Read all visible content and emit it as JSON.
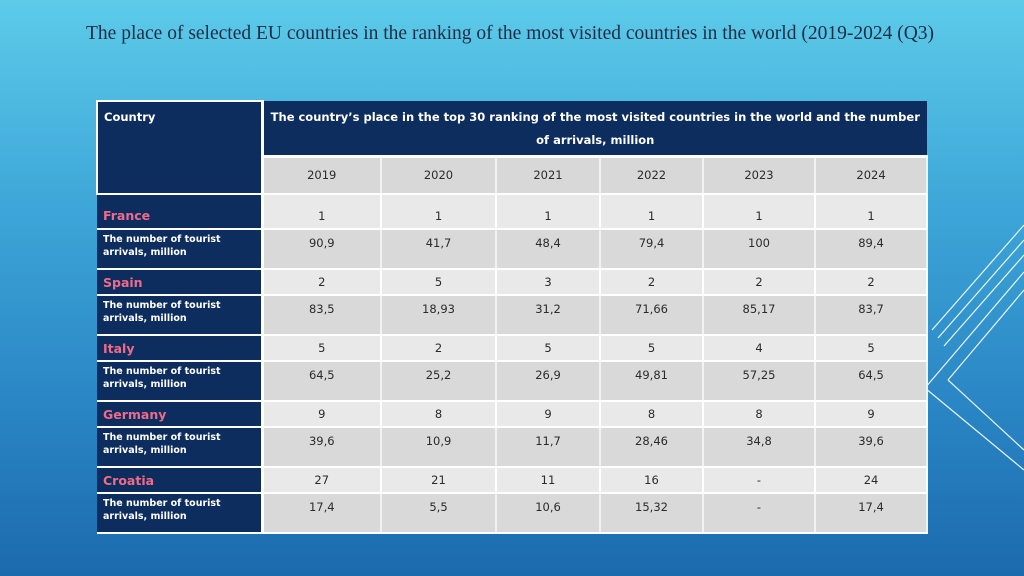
{
  "title": "The place of selected EU countries in the ranking of the most visited countries in the world (2019-2024 (Q3)",
  "table": {
    "country_header": "Country",
    "main_header": "The country’s place in the top 30 ranking of the most visited countries in the world and the number of arrivals, million",
    "years": [
      "2019",
      "2020",
      "2021",
      "2022",
      "2023",
      "2024"
    ],
    "rows": [
      {
        "country": "France",
        "arrivals_label": "The number of tourist arrivals, million",
        "ranks": [
          "1",
          "1",
          "1",
          "1",
          "1",
          "1"
        ],
        "arrivals": [
          "90,9",
          "41,7",
          "48,4",
          "79,4",
          "100",
          "89,4"
        ]
      },
      {
        "country": "Spain",
        "arrivals_label": "The number of tourist arrivals, million",
        "ranks": [
          "2",
          "5",
          "3",
          "2",
          "2",
          "2"
        ],
        "arrivals": [
          "83,5",
          "18,93",
          "31,2",
          "71,66",
          "85,17",
          "83,7"
        ]
      },
      {
        "country": "Italy",
        "arrivals_label": "The number of tourist arrivals, million",
        "ranks": [
          "5",
          "2",
          "5",
          "5",
          "4",
          "5"
        ],
        "arrivals": [
          "64,5",
          "25,2",
          "26,9",
          "49,81",
          "57,25",
          "64,5"
        ]
      },
      {
        "country": "Germany",
        "arrivals_label": "The number of tourist arrivals, million",
        "ranks": [
          "9",
          "8",
          "9",
          "8",
          "8",
          "9"
        ],
        "arrivals": [
          "39,6",
          "10,9",
          "11,7",
          "28,46",
          "34,8",
          "39,6"
        ]
      },
      {
        "country": "Croatia",
        "arrivals_label": "The number of tourist arrivals, million",
        "ranks": [
          "27",
          "21",
          "11",
          "16",
          "-",
          "24"
        ],
        "arrivals": [
          "17,4",
          "5,5",
          "10,6",
          "15,32",
          "-",
          "17,4"
        ]
      }
    ]
  },
  "colors": {
    "header_bg": "#0e2d5f",
    "country_name": "#f06b8a",
    "background_top": "#5dcbe9",
    "background_bottom": "#1c6aae"
  }
}
